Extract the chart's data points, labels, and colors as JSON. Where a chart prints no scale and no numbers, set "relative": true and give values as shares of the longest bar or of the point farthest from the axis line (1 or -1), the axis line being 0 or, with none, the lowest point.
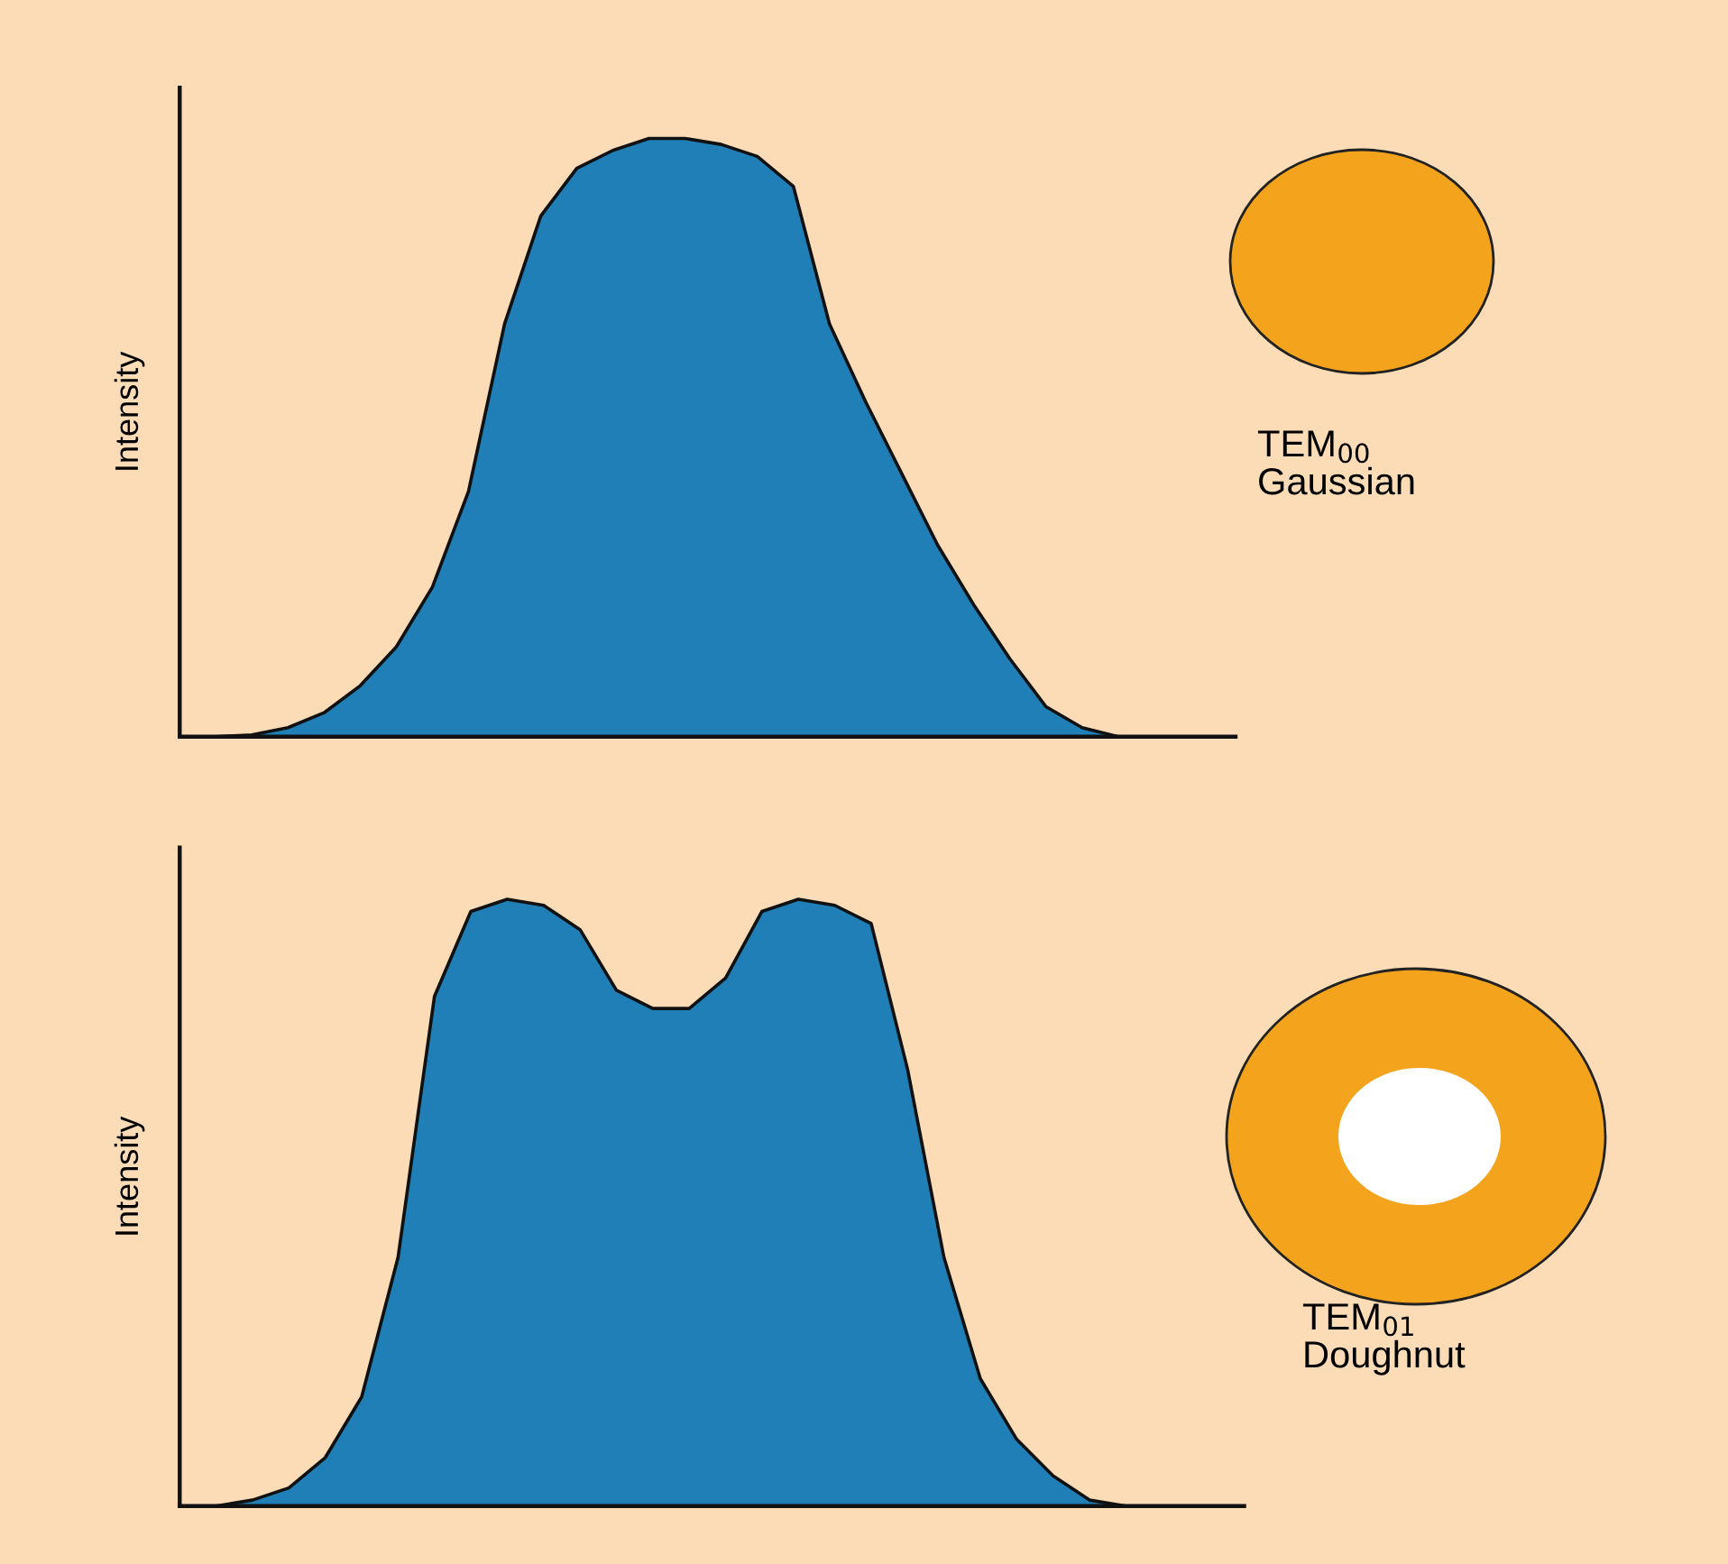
{
  "chart_data": [
    {
      "type": "area",
      "ylabel": "Intensity",
      "relative": true,
      "color": "#1f7fb6",
      "categories": [
        null,
        null,
        null,
        null,
        null,
        null,
        null,
        null,
        null,
        null,
        null,
        null,
        null,
        null,
        null,
        null,
        null,
        null,
        null,
        null,
        null,
        null,
        null,
        null,
        null,
        null,
        null,
        null,
        null,
        null
      ],
      "values": [
        0,
        0,
        0.003,
        0.015,
        0.04,
        0.085,
        0.15,
        0.25,
        0.41,
        0.69,
        0.87,
        0.95,
        0.98,
        1.0,
        1.0,
        0.99,
        0.97,
        0.92,
        0.69,
        0.56,
        0.44,
        0.32,
        0.22,
        0.13,
        0.05,
        0.015,
        0,
        0,
        0,
        0
      ],
      "annotations": [
        "TEM$_{00}$\nGaussian"
      ]
    },
    {
      "type": "area",
      "ylabel": "Intensity",
      "relative": true,
      "color": "#1f7fb6",
      "categories": [
        null,
        null,
        null,
        null,
        null,
        null,
        null,
        null,
        null,
        null,
        null,
        null,
        null,
        null,
        null,
        null,
        null,
        null,
        null,
        null,
        null,
        null,
        null,
        null,
        null,
        null,
        null,
        null,
        null,
        null
      ],
      "values": [
        0,
        0,
        0.01,
        0.03,
        0.08,
        0.18,
        0.41,
        0.84,
        0.98,
        1.0,
        0.99,
        0.95,
        0.85,
        0.82,
        0.82,
        0.87,
        0.98,
        1.0,
        0.99,
        0.96,
        0.72,
        0.41,
        0.21,
        0.11,
        0.05,
        0.01,
        0,
        0,
        0,
        0
      ],
      "annotations": [
        "TEM$_{01}$\nDoughnut"
      ]
    }
  ]
}
